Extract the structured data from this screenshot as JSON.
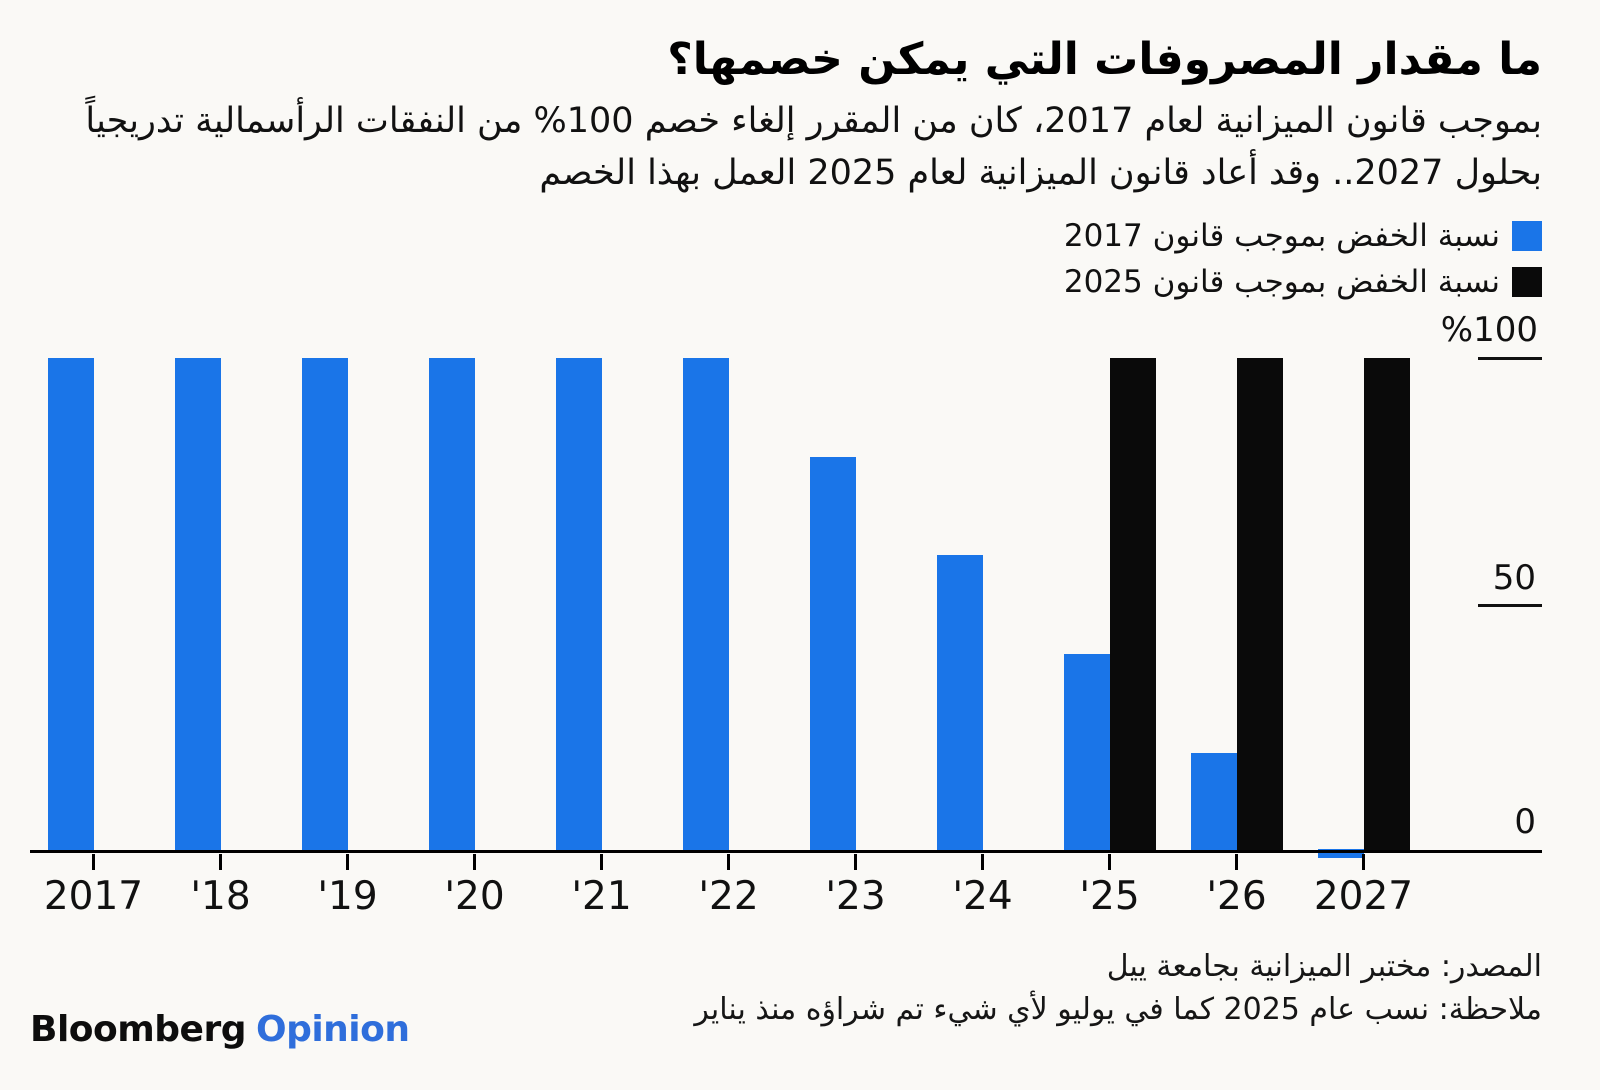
{
  "header": {
    "title": "ما مقدار المصروفات التي يمكن خصمها؟",
    "subtitle_line1": "بموجب قانون الميزانية لعام 2017، كان من المقرر إلغاء خصم 100% من النفقات الرأسمالية تدريجياً",
    "subtitle_line2": "بحلول 2027.. وقد أعاد قانون الميزانية لعام 2025 العمل بهذا الخصم"
  },
  "legend": [
    {
      "label": "نسبة الخفض بموجب قانون 2017",
      "color": "#1a75e8"
    },
    {
      "label": "نسبة الخفض بموجب قانون 2025",
      "color": "#0a0a0a"
    }
  ],
  "chart_data": {
    "type": "bar",
    "categories": [
      "2017",
      "'18",
      "'19",
      "'20",
      "'21",
      "'22",
      "'23",
      "'24",
      "'25",
      "'26",
      "2027"
    ],
    "series": [
      {
        "name": "نسبة الخفض بموجب قانون 2017",
        "color": "#1a75e8",
        "values": [
          100,
          100,
          100,
          100,
          100,
          100,
          80,
          60,
          40,
          20,
          0
        ]
      },
      {
        "name": "نسبة الخفض بموجب قانون 2025",
        "color": "#0a0a0a",
        "values": [
          null,
          null,
          null,
          null,
          null,
          null,
          null,
          null,
          100,
          100,
          100
        ]
      }
    ],
    "y_ticks": {
      "top": "%100",
      "mid": "50",
      "zero": "0"
    },
    "ylim": [
      0,
      100
    ],
    "grid": false,
    "legend_position": "top-right",
    "axis_side": "right"
  },
  "footer": {
    "source": "المصدر: مختبر الميزانية بجامعة ييل",
    "note": "ملاحظة: نسب عام 2025 كما في يوليو لأي شيء تم شراؤه منذ يناير"
  },
  "brand": {
    "bloomberg": "Bloomberg",
    "opinion": "Opinion",
    "opinion_color": "#2f6edb"
  }
}
